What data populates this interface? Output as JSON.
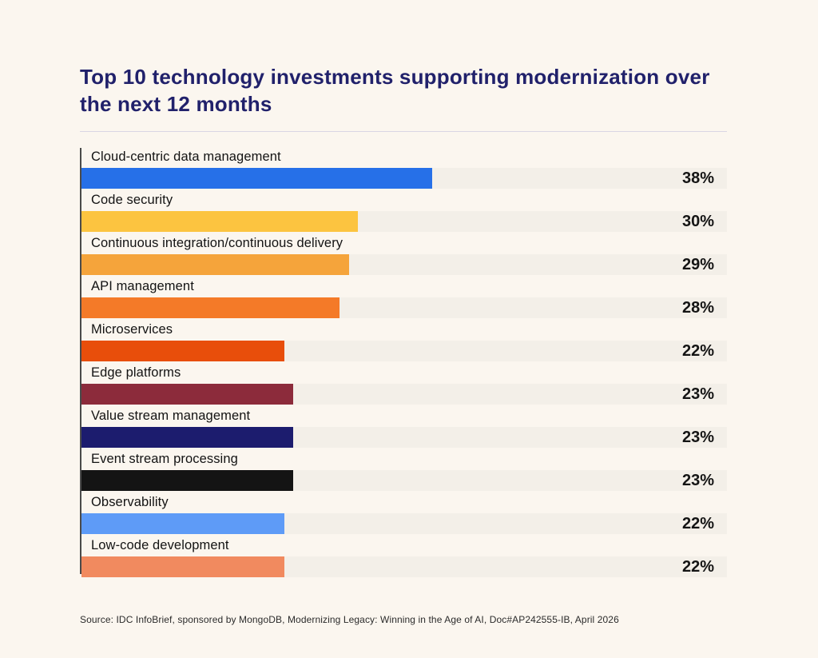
{
  "title": "Top 10 technology investments supporting modernization over the next 12 months",
  "source": "Source: IDC InfoBrief, sponsored by MongoDB,  Modernizing Legacy: Winning in the Age of AI, Doc#AP242555-IB, April 2026",
  "colors": {
    "background": "#FBF6EF",
    "title": "#21216B",
    "track": "#F3EFE8",
    "axis": "#4A4A4A",
    "value_text": "#141414"
  },
  "chart_data": {
    "type": "bar",
    "orientation": "horizontal",
    "title": "Top 10 technology investments supporting modernization over the next 12 months",
    "categories": [
      "Cloud-centric data management",
      "Code security",
      "Continuous integration/continuous delivery",
      "API management",
      "Microservices",
      "Edge platforms",
      "Value stream management",
      "Event stream processing",
      "Observability",
      "Low-code development"
    ],
    "values": [
      38,
      30,
      29,
      28,
      22,
      23,
      23,
      23,
      22,
      22
    ],
    "value_suffix": "%",
    "bar_colors": [
      "#2670E8",
      "#FCC440",
      "#F5A43B",
      "#F47A28",
      "#E84E0B",
      "#8C2B3B",
      "#1C1C6E",
      "#141414",
      "#5E9BF7",
      "#F18A5F"
    ],
    "xlim": [
      0,
      70
    ],
    "grid": false,
    "legend": false
  }
}
